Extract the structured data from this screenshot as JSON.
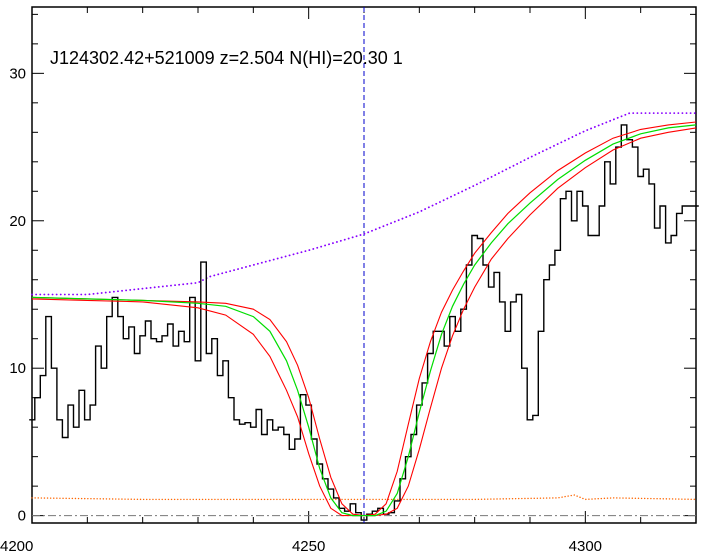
{
  "chart_data": {
    "type": "line",
    "title": "J124302.42+521009 z=2.504 N(HI)=20.30 1",
    "xlabel": "",
    "ylabel": "",
    "xlim": [
      4200,
      4320
    ],
    "ylim": [
      -0.5,
      34.5
    ],
    "x_ticks": [
      4200,
      4250,
      4300
    ],
    "y_ticks": [
      0,
      10,
      20,
      30
    ],
    "grid": false,
    "legend": "none",
    "colors": {
      "spectrum": "#000000",
      "fit": "#00dd00",
      "fit_bounds": "#ff0000",
      "continuum": "#8800ff",
      "continuum_end": "#0000ff",
      "error": "#ff6600",
      "zero_line": "#777777",
      "center_line": "#0000cc"
    },
    "center_wavelength": 4260,
    "zero_level": 0,
    "series": [
      {
        "role": "spectrum",
        "style": "steps",
        "x": [
          4200,
          4201,
          4202,
          4203,
          4204,
          4205,
          4206,
          4207,
          4208,
          4209,
          4210,
          4211,
          4212,
          4213,
          4214,
          4215,
          4216,
          4217,
          4218,
          4219,
          4220,
          4221,
          4222,
          4223,
          4224,
          4225,
          4226,
          4227,
          4228,
          4229,
          4230,
          4231,
          4232,
          4233,
          4234,
          4235,
          4236,
          4237,
          4238,
          4239,
          4240,
          4241,
          4242,
          4243,
          4244,
          4245,
          4246,
          4247,
          4248,
          4249,
          4250,
          4251,
          4252,
          4253,
          4254,
          4255,
          4256,
          4257,
          4258,
          4259,
          4260,
          4261,
          4262,
          4263,
          4264,
          4265,
          4266,
          4267,
          4268,
          4269,
          4270,
          4271,
          4272,
          4273,
          4274,
          4275,
          4276,
          4277,
          4278,
          4279,
          4280,
          4281,
          4282,
          4283,
          4284,
          4285,
          4286,
          4287,
          4288,
          4289,
          4290,
          4291,
          4292,
          4293,
          4294,
          4295,
          4296,
          4297,
          4298,
          4299,
          4300,
          4301,
          4302,
          4303,
          4304,
          4305,
          4306,
          4307,
          4308,
          4309,
          4310,
          4311,
          4312,
          4313,
          4314,
          4315,
          4316,
          4317,
          4318,
          4319,
          4320
        ],
        "y": [
          6.5,
          8,
          9.5,
          13.5,
          10,
          6.5,
          5.3,
          7.5,
          6,
          8.5,
          6.5,
          7.5,
          11.5,
          10,
          13.5,
          14.8,
          13.5,
          12,
          12.8,
          11,
          12.2,
          13.2,
          12,
          11.8,
          12.2,
          13,
          11.5,
          12.5,
          11.8,
          14.8,
          10.5,
          17.2,
          11,
          12,
          9.5,
          10.5,
          8,
          6.5,
          6.2,
          6.3,
          6,
          7.2,
          5.5,
          6.5,
          5.8,
          6,
          5.5,
          4.5,
          5.2,
          8.2,
          7.5,
          5.2,
          3.5,
          2.5,
          1.8,
          1.2,
          0.5,
          0.3,
          0.8,
          0.2,
          -0.3,
          0.1,
          0.3,
          0.5,
          0.1,
          0.2,
          1,
          2.5,
          4,
          5.5,
          7.5,
          9,
          11,
          12.5,
          12.5,
          11.5,
          13.5,
          12.5,
          14,
          17,
          19,
          18.8,
          17,
          15.5,
          16.5,
          14.5,
          12.5,
          14.5,
          15,
          10,
          6.5,
          6.8,
          12.5,
          16,
          17,
          18,
          21.5,
          22,
          20,
          22,
          21,
          19,
          19,
          21,
          24,
          22.5,
          25,
          26.5,
          25.5,
          25,
          23,
          23.5,
          22.5,
          19.5,
          21,
          18.5,
          19,
          20.5,
          21,
          21,
          21
        ]
      },
      {
        "role": "fit",
        "x": [
          4200,
          4210,
          4220,
          4230,
          4235,
          4240,
          4243,
          4246,
          4248,
          4250,
          4252,
          4254,
          4256,
          4258,
          4260,
          4262,
          4264,
          4266,
          4268,
          4270,
          4272,
          4274,
          4276,
          4278,
          4280,
          4283,
          4286,
          4290,
          4295,
          4300,
          4305,
          4310,
          4315,
          4320
        ],
        "y": [
          14.8,
          14.7,
          14.6,
          14.4,
          14.2,
          13.5,
          12.5,
          10.5,
          8.5,
          6,
          3.2,
          1.2,
          0.2,
          0,
          0,
          0,
          0.3,
          1.5,
          4,
          7,
          9.8,
          12.3,
          14.2,
          15.7,
          17,
          18.5,
          19.8,
          21.2,
          22.8,
          24.1,
          25.2,
          25.9,
          26.3,
          26.5
        ]
      },
      {
        "role": "fit_upper",
        "x": [
          4200,
          4210,
          4220,
          4230,
          4235,
          4240,
          4243,
          4246,
          4248,
          4250,
          4252,
          4254,
          4256,
          4258,
          4260,
          4262,
          4264,
          4266,
          4268,
          4270,
          4272,
          4274,
          4276,
          4278,
          4280,
          4283,
          4286,
          4290,
          4295,
          4300,
          4305,
          4310,
          4315,
          4320
        ],
        "y": [
          14.8,
          14.7,
          14.6,
          14.5,
          14.4,
          14,
          13.3,
          11.8,
          10.2,
          8,
          5.2,
          2.6,
          0.8,
          0.1,
          0,
          0.1,
          0.8,
          3,
          6.2,
          9.3,
          11.8,
          13.8,
          15.3,
          16.6,
          17.8,
          19.2,
          20.5,
          21.9,
          23.4,
          24.6,
          25.6,
          26.2,
          26.5,
          26.7
        ]
      },
      {
        "role": "fit_lower",
        "x": [
          4200,
          4210,
          4220,
          4230,
          4235,
          4240,
          4243,
          4246,
          4248,
          4250,
          4252,
          4254,
          4256,
          4258,
          4260,
          4262,
          4264,
          4266,
          4268,
          4270,
          4272,
          4274,
          4276,
          4278,
          4280,
          4283,
          4286,
          4290,
          4295,
          4300,
          4305,
          4310,
          4315,
          4320
        ],
        "y": [
          14.7,
          14.6,
          14.5,
          14.1,
          13.6,
          12.3,
          10.8,
          8.5,
          6.7,
          4.2,
          2,
          0.5,
          0,
          0,
          0,
          0,
          0.1,
          0.5,
          2,
          4.5,
          7.3,
          10,
          12.2,
          14,
          15.5,
          17.4,
          18.8,
          20.4,
          22.2,
          23.6,
          24.8,
          25.6,
          26,
          26.3
        ]
      },
      {
        "role": "continuum",
        "style": "dotted",
        "x": [
          4200,
          4210,
          4220,
          4230,
          4232,
          4240,
          4250,
          4260,
          4270,
          4280,
          4290,
          4300,
          4308,
          4312,
          4320
        ],
        "y": [
          15,
          15,
          15.4,
          15.8,
          16.2,
          17,
          18,
          19.1,
          20.6,
          22.4,
          24.3,
          26.1,
          27.3,
          27.3,
          27.3
        ]
      },
      {
        "role": "error",
        "style": "dotted",
        "x": [
          4200,
          4220,
          4240,
          4260,
          4280,
          4295,
          4298,
          4300,
          4305,
          4320
        ],
        "y": [
          1.2,
          1.1,
          1.1,
          1.1,
          1.1,
          1.2,
          1.4,
          1.1,
          1.2,
          1.1
        ]
      }
    ]
  }
}
